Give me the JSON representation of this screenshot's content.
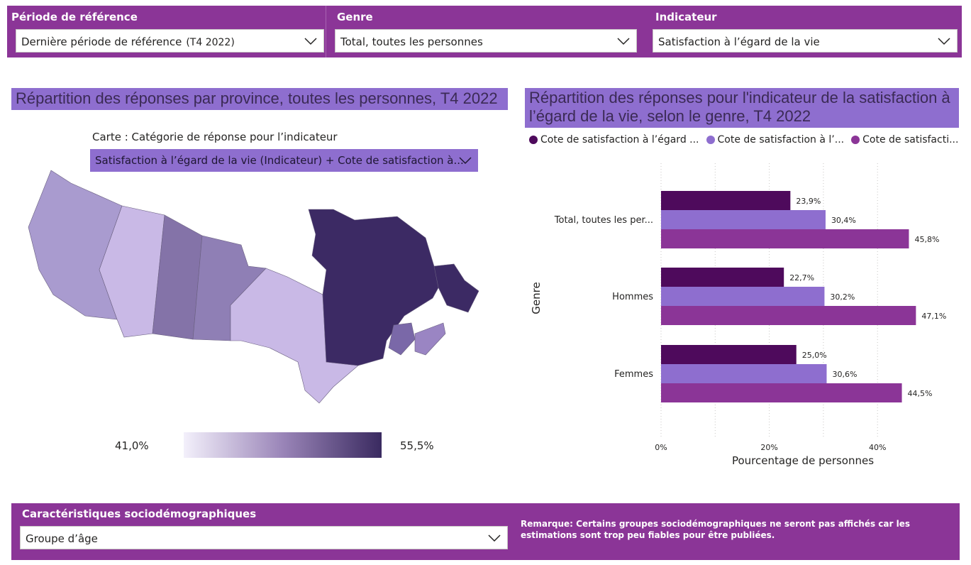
{
  "filters": [
    {
      "label": "Période de référence",
      "value": "Dernière période de référence",
      "value_suffix": "(T4 2022)"
    },
    {
      "label": "Genre",
      "value": "Total, toutes les personnes",
      "value_suffix": ""
    },
    {
      "label": "Indicateur",
      "value": "Satisfaction à l’égard de la vie",
      "value_suffix": ""
    }
  ],
  "map_visual": {
    "title": "Répartition des réponses par province, toutes les personnes, T4 2022",
    "category_label": "Carte : Catégorie de réponse pour l’indicateur",
    "category_value": "Satisfaction à l’égard de la vie (Indicateur) + Cote de satisfaction à...",
    "legend_min": "41,0%",
    "legend_max": "55,5%",
    "colors": {
      "light": "#c9b9e6",
      "mid": "#a99bcf",
      "dark": "#3c2a64"
    }
  },
  "bar_visual": {
    "title_line1": "Répartition des réponses pour l'indicateur de la satisfaction à",
    "title_line2": "l’égard de la vie, selon le genre, T4 2022"
  },
  "chart_data": {
    "type": "bar",
    "orientation": "horizontal",
    "categories": [
      "Total, toutes les per...",
      "Hommes",
      "Femmes"
    ],
    "series": [
      {
        "name": "Cote de satisfaction à l’égard ...",
        "color": "#4E0A5C",
        "values": [
          23.9,
          22.7,
          25.0
        ],
        "labels": [
          "23,9%",
          "22,7%",
          "25,0%"
        ]
      },
      {
        "name": "Cote de satisfaction à l’...",
        "color": "#8E6ECF",
        "values": [
          30.4,
          30.2,
          30.6
        ],
        "labels": [
          "30,4%",
          "30,2%",
          "30,6%"
        ]
      },
      {
        "name": "Cote de satisfacti...",
        "color": "#8B3597",
        "values": [
          45.8,
          47.1,
          44.5
        ],
        "labels": [
          "45,8%",
          "47,1%",
          "44,5%"
        ]
      }
    ],
    "xlabel": "Pourcentage de personnes",
    "ylabel": "Genre",
    "xlim": [
      0,
      50
    ],
    "xticks": [
      "0%",
      "20%",
      "40%"
    ],
    "xtick_values": [
      0,
      20,
      40
    ],
    "legend_position": "top-left",
    "grid": "vertical dotted"
  },
  "bottom": {
    "label": "Caractéristiques sociodémographiques",
    "value": "Groupe d’âge",
    "remark": "Remarque: Certains groupes sociodémographiques ne seront pas affichés car les estimations sont trop peu fiables pour être publiées."
  }
}
